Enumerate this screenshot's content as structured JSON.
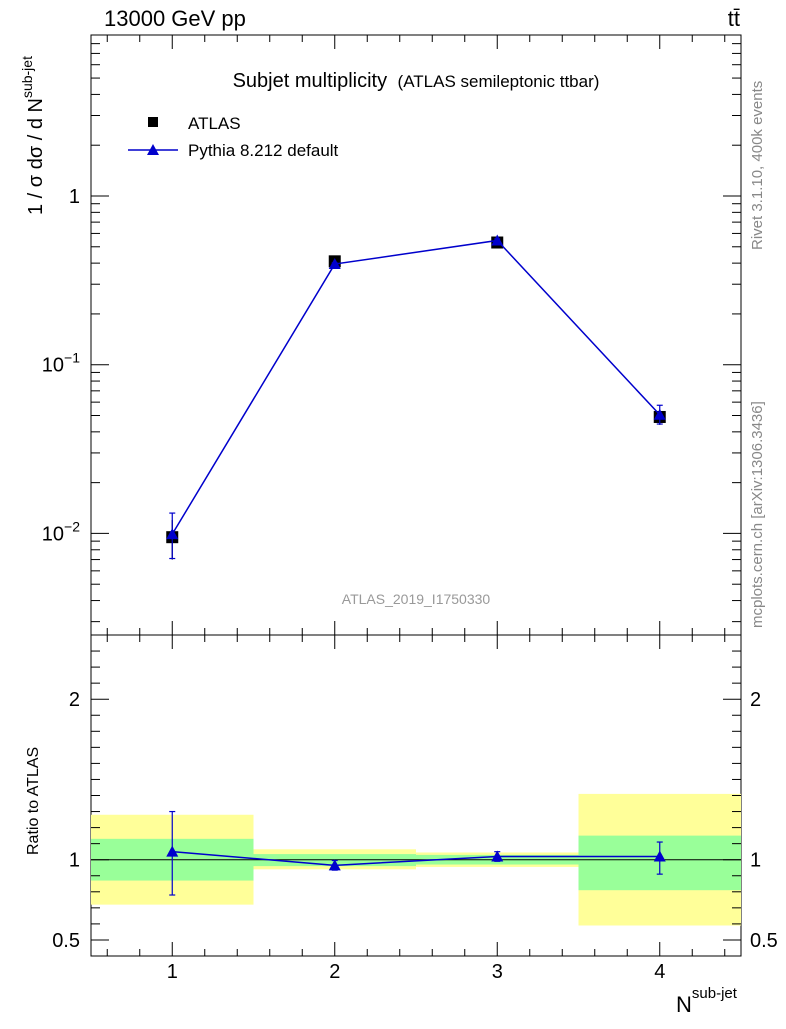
{
  "header": {
    "energy_label": "13000 GeV pp",
    "process_label": "tt̄"
  },
  "side_labels": {
    "rivet": "Rivet 3.1.10,  400k events",
    "source": "mcplots.cern.ch [arXiv:1306.3436]"
  },
  "main_plot": {
    "title": "Subjet multiplicity",
    "subtitle": "(ATLAS semileptonic ttbar)",
    "analysis_id": "ATLAS_2019_I1750330",
    "ylabel_main": "1 / σ dσ / d N",
    "ylabel_sup": "sub-jet",
    "legend": [
      {
        "label": "ATLAS",
        "marker": "square",
        "color": "#000000"
      },
      {
        "label": "Pythia 8.212 default",
        "marker": "triangle",
        "color": "#0000cc"
      }
    ]
  },
  "ratio_plot": {
    "ylabel": "Ratio to ATLAS"
  },
  "xlabel_main": "N",
  "xlabel_sup": "sub-jet",
  "chart_data": [
    {
      "type": "scatter",
      "panel": "main",
      "title": "Subjet multiplicity (ATLAS semileptonic ttbar)",
      "xlabel": "N^sub-jet",
      "ylabel": "1 / σ dσ / d N^sub-jet",
      "yscale": "log",
      "xlim": [
        0.5,
        4.5
      ],
      "ylim": [
        0.0025,
        9.0
      ],
      "x_ticks": [
        1,
        2,
        3,
        4
      ],
      "y_tick_labels": [
        {
          "value": 0.01,
          "base": "10",
          "exp": "−2"
        },
        {
          "value": 0.1,
          "base": "10",
          "exp": "−1"
        },
        {
          "value": 1,
          "base": "1",
          "exp": ""
        }
      ],
      "series": [
        {
          "name": "ATLAS",
          "color": "#000000",
          "x": [
            1,
            2,
            3,
            4
          ],
          "y": [
            0.0095,
            0.41,
            0.53,
            0.049
          ],
          "yerr_low": [
            0.0025,
            0.01,
            0.015,
            0.005
          ],
          "yerr_high": [
            0.0025,
            0.01,
            0.015,
            0.005
          ]
        },
        {
          "name": "Pythia 8.212 default",
          "color": "#0000cc",
          "x": [
            1,
            2,
            3,
            4
          ],
          "y": [
            0.0099,
            0.395,
            0.545,
            0.0505
          ],
          "yerr_low": [
            0.0028,
            0.006,
            0.012,
            0.006
          ],
          "yerr_high": [
            0.0033,
            0.006,
            0.012,
            0.007
          ]
        }
      ],
      "legend": "top-left"
    },
    {
      "type": "line",
      "panel": "ratio",
      "xlabel": "N^sub-jet",
      "ylabel": "Ratio to ATLAS",
      "xlim": [
        0.5,
        4.5
      ],
      "ylim": [
        0.4,
        2.4
      ],
      "x_ticks": [
        1,
        2,
        3,
        4
      ],
      "y_ticks": [
        0.5,
        1,
        2
      ],
      "reference": 1,
      "bands": [
        {
          "x0": 0.5,
          "x1": 1.5,
          "green": [
            0.87,
            1.13
          ],
          "yellow": [
            0.72,
            1.28
          ]
        },
        {
          "x0": 1.5,
          "x1": 2.5,
          "green": [
            0.96,
            1.035
          ],
          "yellow": [
            0.94,
            1.065
          ]
        },
        {
          "x0": 2.5,
          "x1": 3.5,
          "green": [
            0.97,
            1.03
          ],
          "yellow": [
            0.955,
            1.045
          ]
        },
        {
          "x0": 3.5,
          "x1": 4.5,
          "green": [
            0.81,
            1.15
          ],
          "yellow": [
            0.59,
            1.41
          ]
        }
      ],
      "series": [
        {
          "name": "Pythia 8.212 default",
          "color": "#0000cc",
          "x": [
            1,
            2,
            3,
            4
          ],
          "y": [
            1.05,
            0.965,
            1.02,
            1.02
          ],
          "yerr_low": [
            0.27,
            0.03,
            0.03,
            0.11
          ],
          "yerr_high": [
            0.25,
            0.03,
            0.03,
            0.09
          ]
        }
      ]
    }
  ]
}
